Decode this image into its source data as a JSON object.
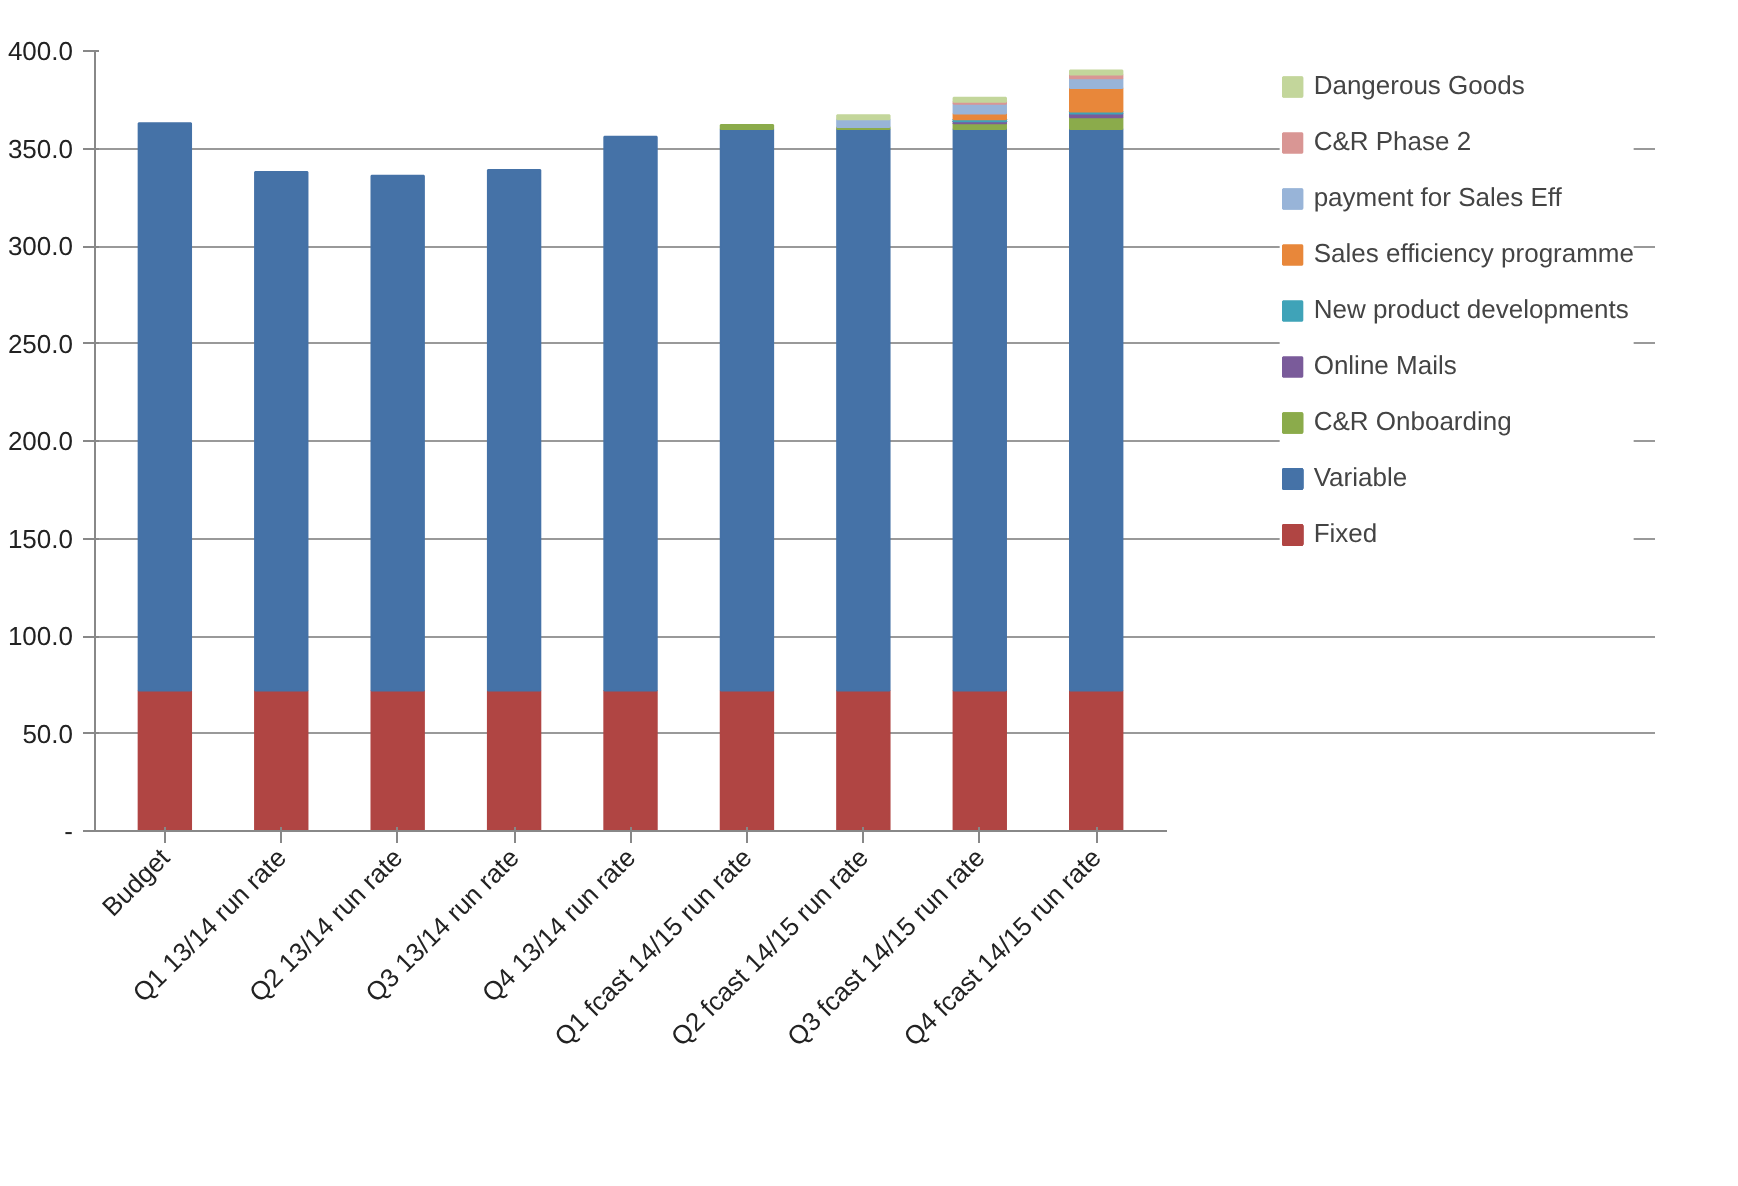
{
  "chart_data": {
    "type": "bar",
    "stacked": true,
    "categories": [
      "Budget",
      "Q1 13/14 run rate",
      "Q2 13/14 run rate",
      "Q3 13/14 run rate",
      "Q4 13/14 run rate",
      "Q1 fcast 14/15 run rate",
      "Q2 fcast 14/15 run rate",
      "Q3 fcast 14/15 run rate",
      "Q4 fcast 14/15 run rate"
    ],
    "series": [
      {
        "name": "Fixed",
        "color": "#b04543",
        "values": [
          72,
          72,
          72,
          72,
          72,
          72,
          72,
          72,
          72
        ]
      },
      {
        "name": "Variable",
        "color": "#4572a7",
        "values": [
          291,
          266,
          264,
          267,
          284,
          288,
          288,
          288,
          288
        ]
      },
      {
        "name": "C&R Onboarding",
        "color": "#8bab4b",
        "values": [
          0,
          0,
          0,
          0,
          0,
          2,
          1,
          3,
          6
        ]
      },
      {
        "name": "Online Mails",
        "color": "#7a5b9a",
        "values": [
          0,
          0,
          0,
          0,
          0,
          0,
          0,
          1,
          2
        ]
      },
      {
        "name": "New product developments",
        "color": "#3fa3b8",
        "values": [
          0,
          0,
          0,
          0,
          0,
          0,
          0,
          1,
          1
        ]
      },
      {
        "name": "Sales efficiency programme",
        "color": "#e8873a",
        "values": [
          0,
          0,
          0,
          0,
          0,
          0,
          0,
          3,
          12
        ]
      },
      {
        "name": "payment for Sales Eff",
        "color": "#98b4d8",
        "values": [
          0,
          0,
          0,
          0,
          0,
          0,
          4,
          5,
          5
        ]
      },
      {
        "name": "C&R Phase 2",
        "color": "#d99694",
        "values": [
          0,
          0,
          0,
          0,
          0,
          0,
          0,
          1,
          2
        ]
      },
      {
        "name": "Dangerous Goods",
        "color": "#c3d69b",
        "values": [
          0,
          0,
          0,
          0,
          0,
          0,
          2,
          2,
          2
        ]
      }
    ],
    "ylim": [
      0,
      400
    ],
    "yticks": [
      {
        "value": 0,
        "label": "-"
      },
      {
        "value": 50,
        "label": "50.0"
      },
      {
        "value": 100,
        "label": "100.0"
      },
      {
        "value": 150,
        "label": "150.0"
      },
      {
        "value": 200,
        "label": "200.0"
      },
      {
        "value": 250,
        "label": "250.0"
      },
      {
        "value": 300,
        "label": "300.0"
      },
      {
        "value": 350,
        "label": "350.0"
      },
      {
        "value": 400,
        "label": "400.0"
      }
    ],
    "grid": "y",
    "legend": "right"
  }
}
